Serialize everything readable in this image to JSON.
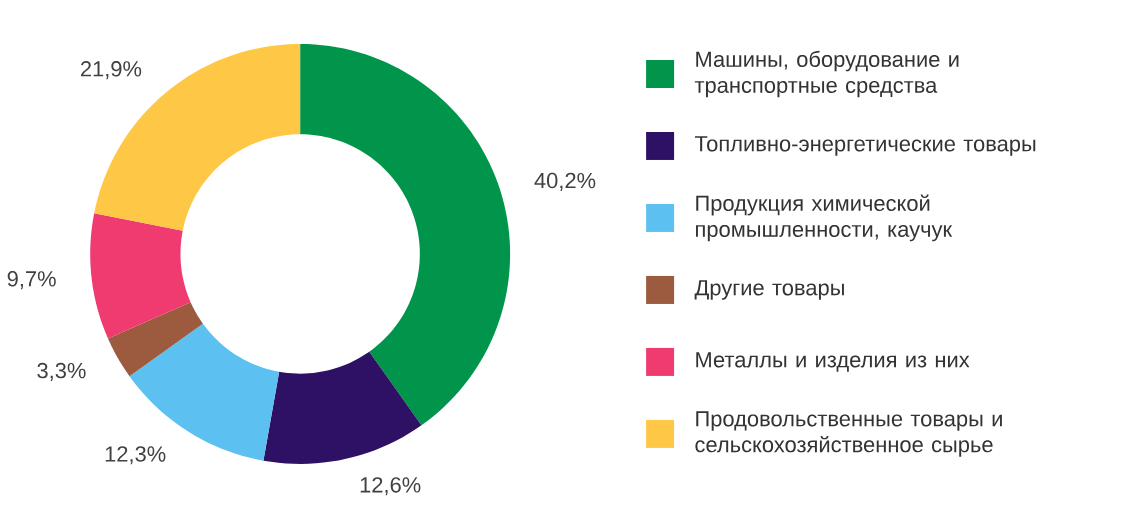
{
  "chart_data": {
    "type": "donut",
    "categories": [
      "Машины, оборудование и транспортные средства",
      "Топливно-энергетические товары",
      "Продукция химической промышленности, каучук",
      "Другие товары",
      "Металлы и изделия из них",
      "Продовольственные товары и сельскохозяйственное сырье"
    ],
    "values": [
      40.2,
      12.6,
      12.3,
      3.3,
      9.7,
      21.9
    ],
    "colors": [
      "#00954b",
      "#2e1165",
      "#5cc1f1",
      "#9c5a3e",
      "#ef3b6f",
      "#fec746"
    ],
    "value_labels": [
      "40,2%",
      "12,6%",
      "12,3%",
      "3,3%",
      "9,7%",
      "21,9%"
    ],
    "legend": "right"
  }
}
